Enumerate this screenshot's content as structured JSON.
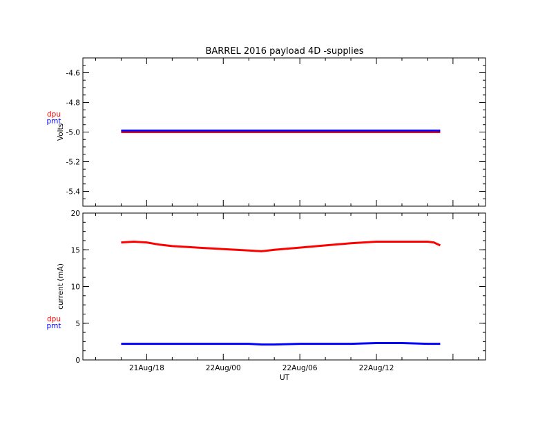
{
  "title": "BARREL 2016 payload 4D -supplies",
  "x_axis": {
    "label": "UT",
    "tick_labels": [
      "21Aug/18",
      "22Aug/00",
      "22Aug/06",
      "22Aug/12"
    ]
  },
  "colors": {
    "dpu": "#ff0000",
    "pmt": "#0000ff",
    "frame": "#000000"
  },
  "chart_data": [
    {
      "type": "line",
      "ylabel": "Volts",
      "ylim": [
        -5.5,
        -4.5
      ],
      "y_ticks": [
        -4.6,
        -4.8,
        -5.0,
        -5.2,
        -5.4
      ],
      "y_tick_labels": [
        "-4.6",
        "-4.8",
        "-5.0",
        "-5.2",
        "-5.4"
      ],
      "legend": [
        "dpu",
        "pmt"
      ],
      "x": [
        16.0,
        18.0,
        20.0,
        22.0,
        24.0,
        26.0,
        28.0,
        30.0,
        32.0,
        34.0,
        36.0,
        38.0,
        40.0,
        41.0
      ],
      "series": [
        {
          "name": "dpu",
          "color": "#ff0000",
          "values": [
            -5.0,
            -5.0,
            -5.0,
            -5.0,
            -5.0,
            -5.0,
            -5.0,
            -5.0,
            -5.0,
            -5.0,
            -5.0,
            -5.0,
            -5.0,
            -5.0
          ]
        },
        {
          "name": "pmt",
          "color": "#0000ff",
          "values": [
            -4.99,
            -4.99,
            -4.99,
            -4.99,
            -4.99,
            -4.99,
            -4.99,
            -4.99,
            -4.99,
            -4.99,
            -4.99,
            -4.99,
            -4.99,
            -4.99
          ]
        }
      ]
    },
    {
      "type": "line",
      "ylabel": "current (mA)",
      "ylim": [
        0,
        20
      ],
      "y_ticks": [
        0,
        5,
        10,
        15,
        20
      ],
      "y_tick_labels": [
        "0",
        "5",
        "10",
        "15",
        "20"
      ],
      "legend": [
        "dpu",
        "pmt"
      ],
      "x": [
        16.0,
        17.0,
        18.0,
        19.0,
        20.0,
        22.0,
        24.0,
        26.0,
        27.0,
        28.0,
        30.0,
        32.0,
        34.0,
        36.0,
        38.0,
        40.0,
        40.5,
        41.0
      ],
      "series": [
        {
          "name": "dpu",
          "color": "#ff0000",
          "values": [
            16.0,
            16.1,
            16.0,
            15.7,
            15.5,
            15.3,
            15.1,
            14.9,
            14.8,
            15.0,
            15.3,
            15.6,
            15.9,
            16.1,
            16.1,
            16.1,
            16.0,
            15.6
          ]
        },
        {
          "name": "pmt",
          "color": "#0000ff",
          "values": [
            2.2,
            2.2,
            2.2,
            2.2,
            2.2,
            2.2,
            2.2,
            2.2,
            2.1,
            2.1,
            2.2,
            2.2,
            2.2,
            2.3,
            2.3,
            2.2,
            2.2,
            2.2
          ]
        }
      ]
    }
  ]
}
